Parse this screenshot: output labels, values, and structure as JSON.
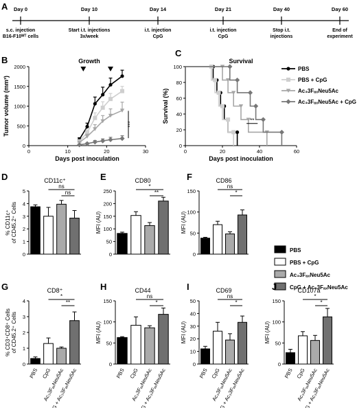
{
  "timeline": {
    "panel_label": "A",
    "events": [
      {
        "day": "Day 0",
        "desc": [
          "s.c. injection",
          "B16-F10ᵂᵀ cells"
        ]
      },
      {
        "day": "Day 10",
        "desc": [
          "Start i.t. injections",
          "3x/week"
        ]
      },
      {
        "day": "Day 14",
        "desc": [
          "i.t. injection",
          "CpG"
        ]
      },
      {
        "day": "Day 21",
        "desc": [
          "i.t. injection",
          "CpG"
        ]
      },
      {
        "day": "Day 40",
        "desc": [
          "Stop i.t.",
          "injections"
        ]
      },
      {
        "day": "Day 60",
        "desc": [
          "End of",
          "experiment"
        ]
      }
    ]
  },
  "groups": [
    {
      "name": "PBS",
      "color": "#000000"
    },
    {
      "name": "PBS + CpG",
      "color": "#ffffff"
    },
    {
      "name": "Ac₃3FₐₓNeu5Ac",
      "color": "#aaaaaa"
    },
    {
      "name": "CpG + Ac₃3FₐₓNeu5Ac",
      "color": "#707070"
    }
  ],
  "bar_xticks": [
    "PBS",
    "CpG",
    "Ac₃3FₐₓNeu5Ac",
    "CpG + Ac₃3FₐₓNeu5Ac"
  ],
  "legend_bars": [
    "PBS",
    "PBS + CpG",
    "Ac₃3FₐₓNeu5Ac",
    "CpG + Ac₃3FₐₓNeu5Ac"
  ],
  "chart_data": [
    {
      "id": "B",
      "type": "line",
      "subtitle": "Growth",
      "xlabel": "Days post inoculation",
      "ylabel": "Tumor volume (mm³)",
      "xlim": [
        0,
        30
      ],
      "ylim": [
        0,
        2000
      ],
      "xticks": [
        0,
        10,
        20,
        30
      ],
      "yticks": [
        0,
        500,
        1000,
        1500,
        2000
      ],
      "x": [
        13,
        15,
        17,
        19,
        21,
        24
      ],
      "series": [
        {
          "name": "PBS",
          "values": [
            160,
            480,
            1060,
            1290,
            1540,
            1760
          ],
          "err": [
            40,
            90,
            170,
            190,
            170,
            150
          ]
        },
        {
          "name": "PBS + CpG",
          "values": [
            110,
            330,
            700,
            960,
            1180,
            1380
          ],
          "err": [
            30,
            70,
            130,
            150,
            140,
            120
          ]
        },
        {
          "name": "Ac₃3FₐₓNeu5Ac",
          "values": [
            80,
            230,
            420,
            620,
            760,
            890
          ],
          "err": [
            20,
            60,
            110,
            140,
            170,
            210
          ]
        },
        {
          "name": "Ac₃3FₐₓNeu5Ac + CpG",
          "values": [
            20,
            50,
            90,
            120,
            150,
            180
          ],
          "err": [
            10,
            20,
            40,
            50,
            60,
            70
          ]
        }
      ],
      "triangles_at": [
        14,
        21
      ],
      "annotations": [
        "***"
      ]
    },
    {
      "id": "C",
      "type": "line",
      "subtitle": "Survival",
      "xlabel": "Days post inoculation",
      "ylabel": "Survival (%)",
      "xlim": [
        0,
        60
      ],
      "ylim": [
        0,
        100
      ],
      "xticks": [
        0,
        20,
        40,
        60
      ],
      "yticks": [
        0,
        20,
        40,
        60,
        80,
        100
      ],
      "series": [
        {
          "name": "PBS",
          "steps": [
            [
              0,
              100
            ],
            [
              15,
              100
            ],
            [
              15,
              83
            ],
            [
              17,
              83
            ],
            [
              17,
              67
            ],
            [
              19,
              67
            ],
            [
              19,
              50
            ],
            [
              21,
              50
            ],
            [
              21,
              33
            ],
            [
              23,
              33
            ],
            [
              23,
              17
            ],
            [
              28,
              17
            ],
            [
              28,
              0
            ]
          ]
        },
        {
          "name": "PBS + CpG",
          "steps": [
            [
              0,
              100
            ],
            [
              14,
              100
            ],
            [
              14,
              83
            ],
            [
              16,
              83
            ],
            [
              16,
              67
            ],
            [
              18,
              67
            ],
            [
              18,
              50
            ],
            [
              20,
              50
            ],
            [
              20,
              33
            ],
            [
              23,
              33
            ],
            [
              23,
              17
            ],
            [
              26,
              17
            ],
            [
              26,
              0
            ]
          ]
        },
        {
          "name": "Ac₃3FₐₓNeu5Ac",
          "steps": [
            [
              0,
              100
            ],
            [
              20,
              100
            ],
            [
              20,
              83
            ],
            [
              23,
              83
            ],
            [
              23,
              67
            ],
            [
              26,
              67
            ],
            [
              26,
              50
            ],
            [
              30,
              50
            ],
            [
              30,
              33
            ],
            [
              34,
              33
            ],
            [
              34,
              17
            ],
            [
              44,
              17
            ],
            [
              44,
              0
            ]
          ]
        },
        {
          "name": "Ac₃3FₐₓNeu5Ac + CpG",
          "steps": [
            [
              0,
              100
            ],
            [
              24,
              100
            ],
            [
              24,
              83
            ],
            [
              28,
              83
            ],
            [
              28,
              67
            ],
            [
              35,
              67
            ],
            [
              35,
              50
            ],
            [
              38,
              50
            ],
            [
              38,
              33
            ],
            [
              42,
              33
            ],
            [
              42,
              17
            ],
            [
              52,
              17
            ],
            [
              52,
              0
            ]
          ]
        }
      ],
      "annotations": [
        "**"
      ]
    },
    {
      "id": "D",
      "type": "bar",
      "title": "CD11c⁺",
      "ylabel": "% CD11c⁺ of CD45.2⁺ Cells",
      "ylim": [
        0,
        5
      ],
      "yticks": [
        0,
        1,
        2,
        3,
        4,
        5
      ],
      "values": [
        3.75,
        3.0,
        3.95,
        2.85
      ],
      "err": [
        0.15,
        0.7,
        0.3,
        0.6
      ],
      "brackets": [
        {
          "from": 1,
          "to": 3,
          "label": "ns"
        },
        {
          "from": 2,
          "to": 3,
          "label": "ns"
        }
      ]
    },
    {
      "id": "E",
      "type": "bar",
      "title": "CD80",
      "ylabel": "MFI (AU)",
      "ylim": [
        0,
        250
      ],
      "yticks": [
        0,
        50,
        100,
        150,
        200,
        250
      ],
      "values": [
        82,
        153,
        113,
        210
      ],
      "err": [
        5,
        15,
        12,
        15
      ],
      "brackets": [
        {
          "from": 1,
          "to": 3,
          "label": "*"
        },
        {
          "from": 2,
          "to": 3,
          "label": "**"
        }
      ]
    },
    {
      "id": "F",
      "type": "bar",
      "title": "CD86",
      "ylabel": "MFI (AU)",
      "ylim": [
        0,
        150
      ],
      "yticks": [
        0,
        50,
        100,
        150
      ],
      "values": [
        38,
        70,
        48,
        93
      ],
      "err": [
        2,
        8,
        5,
        12
      ],
      "brackets": [
        {
          "from": 1,
          "to": 3,
          "label": "ns"
        },
        {
          "from": 2,
          "to": 3,
          "label": "*"
        }
      ]
    },
    {
      "id": "G",
      "type": "bar",
      "title": "CD8⁺",
      "ylabel": "% CD3⁺CD8⁺ of CD45.2⁺ Cells",
      "ylim": [
        0,
        4
      ],
      "yticks": [
        0,
        1,
        2,
        3,
        4
      ],
      "values": [
        0.35,
        1.3,
        1.0,
        2.75
      ],
      "err": [
        0.1,
        0.35,
        0.08,
        0.55
      ],
      "brackets": [
        {
          "from": 1,
          "to": 3,
          "label": "*"
        },
        {
          "from": 2,
          "to": 3,
          "label": "**"
        }
      ]
    },
    {
      "id": "H",
      "type": "bar",
      "title": "CD44",
      "ylabel": "MFI (AU)",
      "ylim": [
        0,
        150
      ],
      "yticks": [
        0,
        50,
        100,
        150
      ],
      "values": [
        63,
        92,
        86,
        118
      ],
      "err": [
        2,
        20,
        5,
        15
      ],
      "brackets": [
        {
          "from": 1,
          "to": 3,
          "label": "ns"
        },
        {
          "from": 2,
          "to": 3,
          "label": "*"
        }
      ]
    },
    {
      "id": "I",
      "type": "bar",
      "title": "CD69",
      "ylabel": "MFI (AU)",
      "ylim": [
        0,
        50
      ],
      "yticks": [
        0,
        10,
        20,
        30,
        40,
        50
      ],
      "values": [
        12,
        26,
        19,
        33
      ],
      "err": [
        2,
        7,
        5,
        5
      ],
      "brackets": [
        {
          "from": 1,
          "to": 3,
          "label": "ns"
        },
        {
          "from": 2,
          "to": 3,
          "label": "*"
        }
      ]
    },
    {
      "id": "J",
      "type": "bar",
      "title": "CD107a",
      "ylabel": "MFI (AU)",
      "ylim": [
        0,
        150
      ],
      "yticks": [
        0,
        50,
        100,
        150
      ],
      "values": [
        27,
        67,
        56,
        112
      ],
      "err": [
        8,
        10,
        12,
        20
      ],
      "brackets": [
        {
          "from": 1,
          "to": 3,
          "label": "*"
        },
        {
          "from": 2,
          "to": 3,
          "label": "*"
        }
      ]
    }
  ]
}
